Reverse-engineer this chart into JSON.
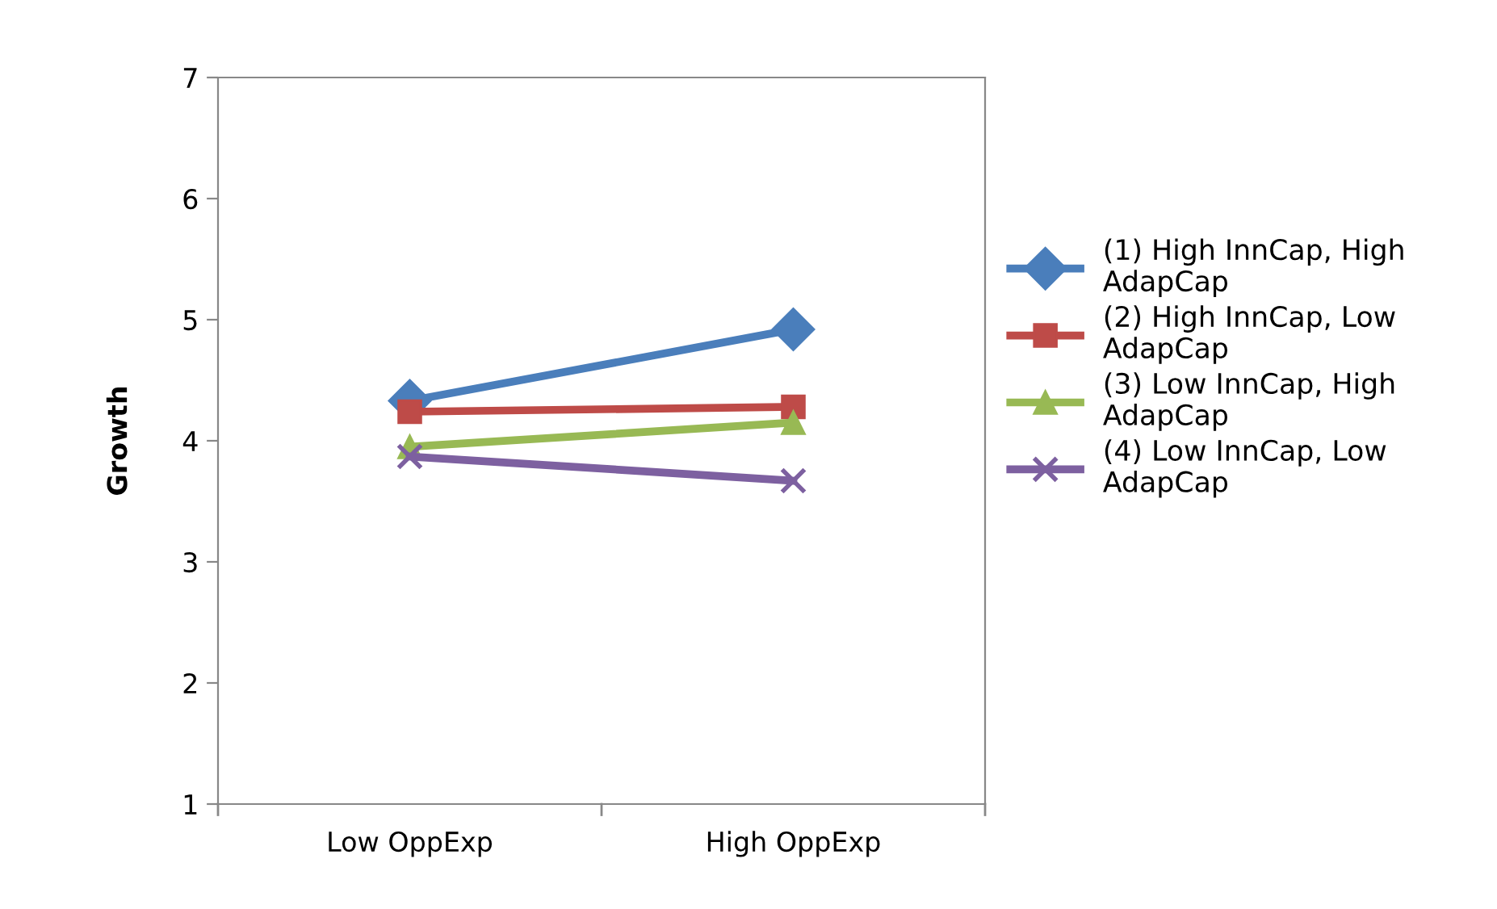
{
  "chart_data": {
    "type": "line",
    "ylabel": "Growth",
    "categories": [
      "Low OppExp",
      "High OppExp"
    ],
    "ylim": [
      1,
      7
    ],
    "yticks": [
      1,
      2,
      3,
      4,
      5,
      6,
      7
    ],
    "grid": false,
    "legend": "right",
    "series": [
      {
        "name": "(1) High InnCap, High AdapCap",
        "color": "#4a7ebb",
        "marker": "diamond",
        "values": [
          4.33,
          4.92
        ]
      },
      {
        "name": "(2) High InnCap, Low AdapCap",
        "color": "#be4b48",
        "marker": "square",
        "values": [
          4.24,
          4.28
        ]
      },
      {
        "name": "(3) Low InnCap, High AdapCap",
        "color": "#98b954",
        "marker": "triangle",
        "values": [
          3.95,
          4.15
        ]
      },
      {
        "name": "(4) Low InnCap, Low AdapCap",
        "color": "#7d60a0",
        "marker": "cross",
        "values": [
          3.87,
          3.67
        ]
      }
    ]
  }
}
